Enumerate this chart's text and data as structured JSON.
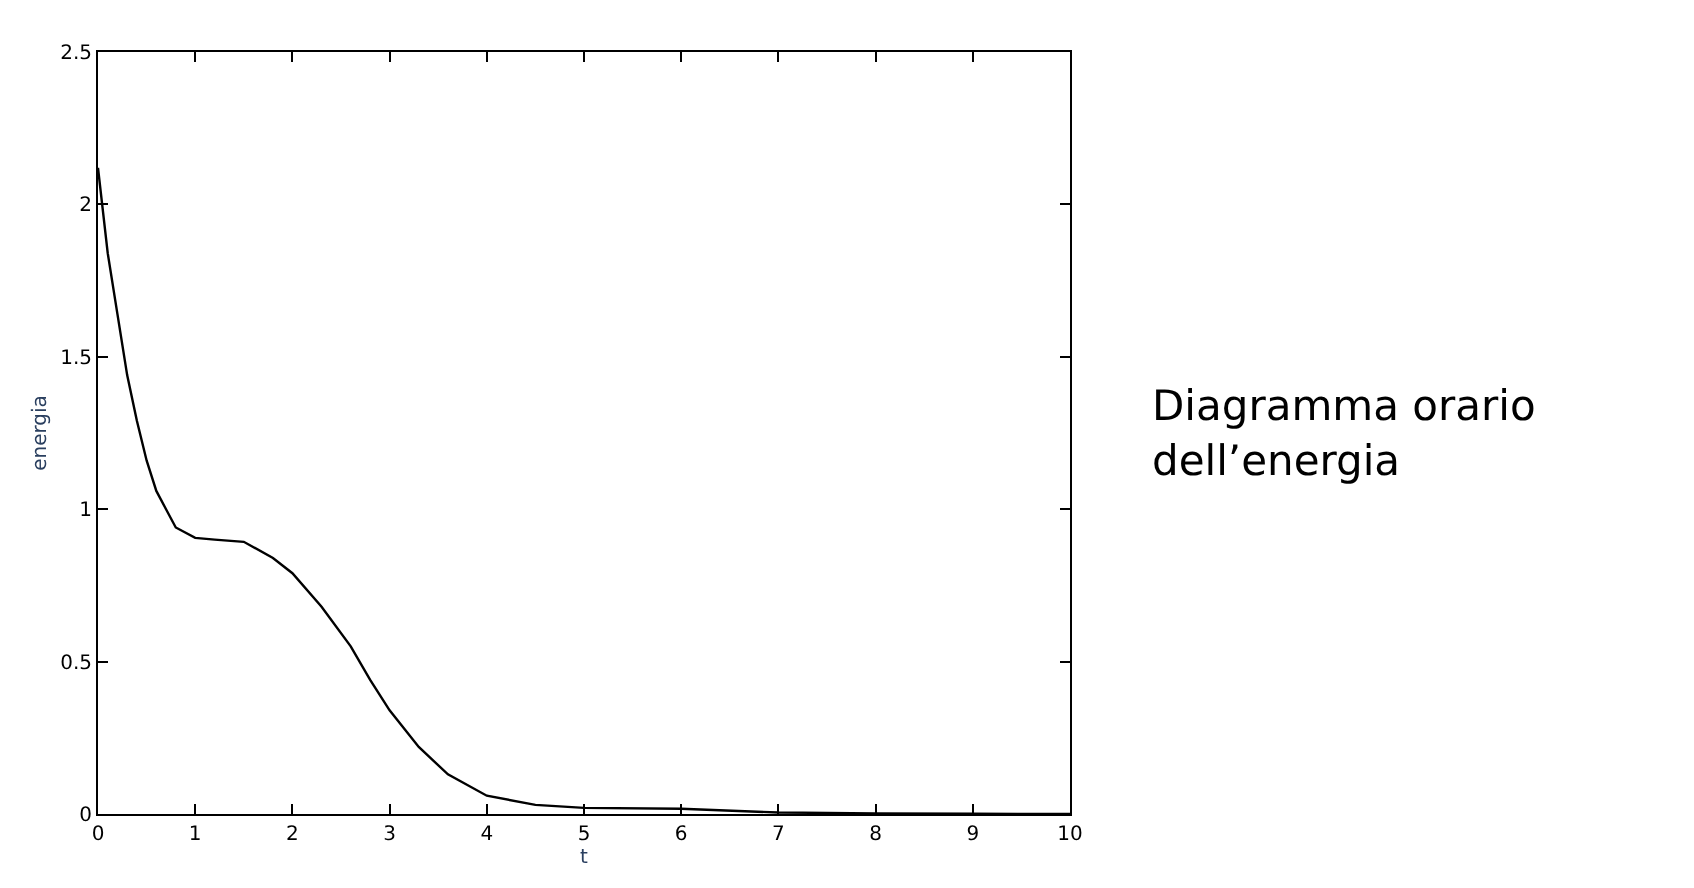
{
  "chart_data": {
    "type": "line",
    "xlabel": "t",
    "ylabel": "energia",
    "annotations": [
      "Diagramma orario\ndell’energia"
    ],
    "x": [
      0,
      0.1,
      0.2,
      0.3,
      0.4,
      0.5,
      0.6,
      0.7,
      0.8,
      1.0,
      1.2,
      1.5,
      1.8,
      2.0,
      2.3,
      2.6,
      2.8,
      3.0,
      3.3,
      3.6,
      4.0,
      4.5,
      5,
      6,
      7,
      8,
      9,
      10
    ],
    "series": [
      {
        "color": "#000000",
        "values": [
          2.12,
          1.84,
          1.64,
          1.44,
          1.29,
          1.16,
          1.06,
          1.0,
          0.94,
          0.906,
          0.9,
          0.893,
          0.84,
          0.79,
          0.68,
          0.55,
          0.44,
          0.34,
          0.22,
          0.13,
          0.06,
          0.03,
          0.02,
          0.017,
          0.005,
          0.002,
          0.001,
          0
        ]
      }
    ],
    "xlim": [
      0,
      10
    ],
    "ylim": [
      0,
      2.5
    ],
    "xticks": [
      0,
      1,
      2,
      3,
      4,
      5,
      6,
      7,
      8,
      9,
      10
    ],
    "yticks": [
      0,
      0.5,
      1,
      1.5,
      2,
      2.5
    ],
    "legend": false,
    "marker": "none",
    "line_style": "solid"
  }
}
